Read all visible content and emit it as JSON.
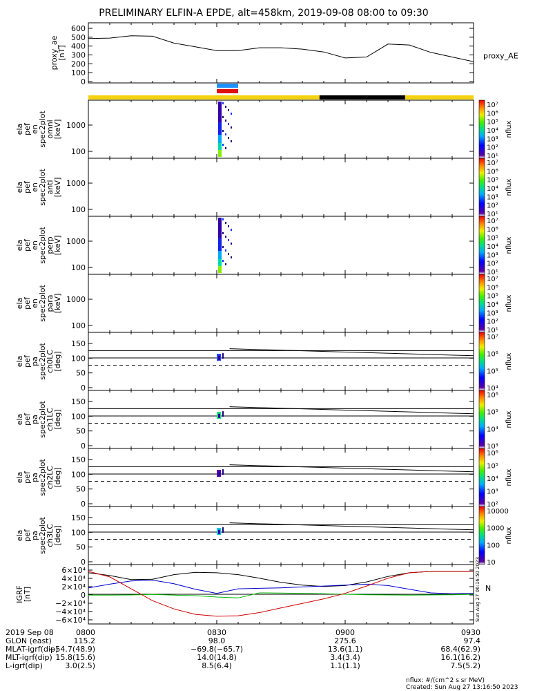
{
  "title": "PRELIMINARY ELFIN-A EPDE, alt=458km, 2019-09-08 08:00 to 09:30",
  "colors": {
    "ae": "#000000",
    "bx": "#0000cc",
    "by": "#00bb00",
    "bz": "#cc0000",
    "bt": "#000000",
    "sun": "#f5d20f",
    "shadow": "#000000",
    "blue_bar": "#1e90ff",
    "red_bar": "#e01010"
  },
  "panels": [
    {
      "key": "ae",
      "ylabel_lines": [
        "proxy_ae",
        "[nT]"
      ],
      "right_label": "proxy_AE",
      "yticks": [
        "600",
        "500",
        "400",
        "300",
        "200",
        "100",
        "0"
      ]
    },
    {
      "key": "omni",
      "ylabel_lines": [
        "ela",
        "pef",
        "en",
        "spec2plot",
        "omni",
        "[keV]"
      ],
      "yticks": [
        "1000",
        "100"
      ],
      "cb_ticks": [
        "10⁷",
        "10⁶",
        "10⁵",
        "10⁴",
        "10³",
        "10²",
        "10¹"
      ],
      "cb_label": "nflux"
    },
    {
      "key": "anti",
      "ylabel_lines": [
        "ela",
        "pef",
        "en",
        "spec2plot",
        "anti",
        "[keV]"
      ],
      "yticks": [
        "1000",
        "100"
      ],
      "cb_ticks": [
        "10⁷",
        "10⁶",
        "10⁵",
        "10⁴",
        "10³",
        "10²",
        "10¹"
      ],
      "cb_label": "nflux"
    },
    {
      "key": "perp",
      "ylabel_lines": [
        "ela",
        "pef",
        "en",
        "spec2plot",
        "perp",
        "[keV]"
      ],
      "yticks": [
        "1000",
        "100"
      ],
      "cb_ticks": [
        "10⁷",
        "10⁶",
        "10⁵",
        "10⁴",
        "10³",
        "10²",
        "10¹"
      ],
      "cb_label": "nflux"
    },
    {
      "key": "para",
      "ylabel_lines": [
        "ela",
        "pef",
        "en",
        "spec2plot",
        "para",
        "[keV]"
      ],
      "yticks": [
        "1000",
        "100"
      ],
      "cb_ticks": [
        "10⁷",
        "10⁶",
        "10⁵",
        "10⁴",
        "10³",
        "10²",
        "10¹"
      ],
      "cb_label": "nflux"
    },
    {
      "key": "ch0",
      "ylabel_lines": [
        "ela",
        "pef",
        "pa",
        "spec2plot",
        "ch0LC",
        "[deg]"
      ],
      "yticks": [
        "150",
        "100",
        "50",
        "0"
      ],
      "cb_ticks": [
        "10⁷",
        "10⁶",
        "10⁵",
        "10⁴"
      ],
      "cb_label": "nflux"
    },
    {
      "key": "ch1",
      "ylabel_lines": [
        "ela",
        "pef",
        "pa",
        "spec2plot",
        "ch1LC",
        "[deg]"
      ],
      "yticks": [
        "150",
        "100",
        "50",
        "0"
      ],
      "cb_ticks": [
        "10⁶",
        "10⁵",
        "10⁴",
        "10³"
      ],
      "cb_label": "nflux"
    },
    {
      "key": "ch2",
      "ylabel_lines": [
        "ela",
        "pef",
        "pa",
        "spec2plot",
        "ch2LC",
        "[deg]"
      ],
      "yticks": [
        "150",
        "100",
        "50",
        "0"
      ],
      "cb_ticks": [
        "10⁶",
        "10⁵",
        "10⁴",
        "10³",
        "10²"
      ],
      "cb_label": "nflux"
    },
    {
      "key": "ch3",
      "ylabel_lines": [
        "ela",
        "pef",
        "pa",
        "spec2plot",
        "ch3LC",
        "[deg]"
      ],
      "yticks": [
        "150",
        "100",
        "50",
        "0"
      ],
      "cb_ticks": [
        "10000",
        "1000",
        "100",
        "10"
      ],
      "cb_label": "nflux"
    },
    {
      "key": "igrf",
      "ylabel_lines": [
        "IGRF",
        "[nT]"
      ],
      "yticks": [
        "6×10⁴",
        "4×10⁴",
        "2×10⁴",
        "0",
        "−2×10⁴",
        "−4×10⁴",
        "−6×10⁴"
      ],
      "right_label": "N"
    }
  ],
  "footer": {
    "rows": [
      {
        "label": "2019 Sep 08",
        "values": [
          "0800",
          "0830",
          "0900",
          "0930"
        ]
      },
      {
        "label": "GLON (east)",
        "values": [
          "115.2",
          "98.0",
          "275.6",
          "97.4"
        ]
      },
      {
        "label": "MLAT-igrf(dip)",
        "values": [
          "−54.7(48.9)",
          "−69.8(−65.7)",
          "13.6(1.1)",
          "68.4(62.9)"
        ]
      },
      {
        "label": "MLT-igrf(dip)",
        "values": [
          "15.8(15.6)",
          "14.0(14.8)",
          "3.4(3.4)",
          "16.1(16.2)"
        ]
      },
      {
        "label": "L-igrf(dip)",
        "values": [
          "3.0(2.5)",
          "8.5(6.4)",
          "1.1(1.1)",
          "7.5(5.2)"
        ]
      }
    ],
    "units_note": "nflux: #/(cm^2 s sr MeV)",
    "created": "Created: Sun Aug 27 13:16:50 2023",
    "side_stamp": "Sun Aug 27 06:16:50 2023"
  },
  "chart_data": {
    "type": "line",
    "x_unit": "UT",
    "xlim": [
      "08:00",
      "09:30"
    ],
    "x_ticks": [
      "0800",
      "0830",
      "0900",
      "0930"
    ],
    "series": [
      {
        "name": "proxy_AE",
        "panel": "ae",
        "ylim": [
          0,
          650
        ],
        "x": [
          "08:00",
          "08:05",
          "08:10",
          "08:15",
          "08:20",
          "08:25",
          "08:30",
          "08:35",
          "08:40",
          "08:45",
          "08:50",
          "08:55",
          "09:00",
          "09:05",
          "09:10",
          "09:15",
          "09:20",
          "09:25",
          "09:30"
        ],
        "values": [
          480,
          485,
          510,
          505,
          430,
          390,
          350,
          350,
          380,
          380,
          365,
          335,
          270,
          280,
          420,
          410,
          330,
          280,
          230
        ]
      },
      {
        "panel": "igrf",
        "color_key": "bt",
        "ylim": [
          -65000,
          65000
        ],
        "x": [
          "08:00",
          "08:05",
          "08:10",
          "08:15",
          "08:20",
          "08:25",
          "08:30",
          "08:35",
          "08:40",
          "08:45",
          "08:50",
          "08:55",
          "09:00",
          "09:05",
          "09:10",
          "09:15",
          "09:20",
          "09:25",
          "09:30"
        ],
        "values": [
          47000,
          41000,
          32000,
          33000,
          43000,
          48000,
          47000,
          43000,
          35000,
          26000,
          20000,
          17000,
          19000,
          27000,
          39000,
          47000,
          50000,
          50000,
          50000
        ]
      },
      {
        "panel": "igrf",
        "color_key": "bx",
        "ylim": [
          -65000,
          65000
        ],
        "x": [
          "08:00",
          "08:05",
          "08:10",
          "08:15",
          "08:20",
          "08:25",
          "08:30",
          "08:35",
          "08:40",
          "08:45",
          "08:50",
          "08:55",
          "09:00",
          "09:05",
          "09:10",
          "09:15",
          "09:20",
          "09:25",
          "09:30"
        ],
        "values": [
          14000,
          22000,
          29000,
          31000,
          23000,
          11000,
          2000,
          12000,
          13000,
          14000,
          16000,
          18000,
          20000,
          22000,
          19000,
          11000,
          3000,
          1000,
          2000
        ]
      },
      {
        "panel": "igrf",
        "color_key": "by",
        "ylim": [
          -65000,
          65000
        ],
        "x": [
          "08:00",
          "08:05",
          "08:10",
          "08:15",
          "08:20",
          "08:25",
          "08:30",
          "08:35",
          "08:40",
          "08:45",
          "08:50",
          "08:55",
          "09:00",
          "09:05",
          "09:10",
          "09:15",
          "09:20",
          "09:25",
          "09:30"
        ],
        "values": [
          -2000,
          -2000,
          -1500,
          -500,
          -2000,
          -3000,
          -6000,
          -8000,
          3000,
          2500,
          2000,
          1000,
          0,
          -1000,
          -1500,
          -2000,
          -1500,
          -1000,
          0
        ]
      },
      {
        "panel": "igrf",
        "color_key": "bz",
        "ylim": [
          -65000,
          65000
        ],
        "x": [
          "08:00",
          "08:05",
          "08:10",
          "08:15",
          "08:20",
          "08:25",
          "08:30",
          "08:35",
          "08:40",
          "08:45",
          "08:50",
          "08:55",
          "09:00",
          "09:05",
          "09:10",
          "09:15",
          "09:20",
          "09:25",
          "09:30"
        ],
        "values": [
          50000,
          38000,
          12000,
          -14000,
          -32000,
          -44000,
          -48000,
          -47000,
          -40000,
          -30000,
          -20000,
          -10000,
          2000,
          18000,
          35000,
          47000,
          50000,
          50000,
          50000
        ]
      }
    ],
    "bars": {
      "sunlight": [
        [
          "08:00",
          "08:54"
        ],
        [
          "09:14",
          "09:30"
        ]
      ],
      "shadow": [
        [
          "08:54",
          "09:14"
        ]
      ],
      "science_zone_blue": [
        "08:30",
        "08:35"
      ],
      "science_zone_red": [
        "08:30",
        "08:35"
      ]
    }
  }
}
